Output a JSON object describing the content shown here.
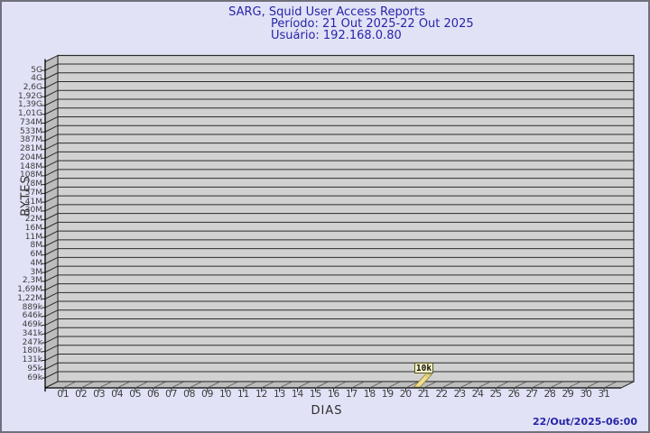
{
  "title": {
    "line1": "SARG, Squid User Access Reports",
    "line2": "Período: 21 Out 2025-22 Out 2025",
    "line3": "Usuário: 192.168.0.80"
  },
  "axes": {
    "y_label": "BYTES",
    "x_label": "DIAS"
  },
  "footer": {
    "timestamp": "22/Out/2025-06:00"
  },
  "colors": {
    "background": "#e2e2f7",
    "frame_border": "#70707c",
    "title_text": "#2525a8",
    "panel_fill": "#d1d1d1",
    "wall_fill": "#bdbdbd",
    "grid_line": "#2b2b2b",
    "axis_line": "#000000",
    "tick_text": "#3c3c3c",
    "bar_fill": "#efdf8e",
    "bar_border": "#8a7c33",
    "bar_pointer": "#dcc96b",
    "label_box_fill": "#fbf7c8",
    "label_box_border": "#54541e"
  },
  "chart_data": {
    "type": "bar",
    "title": "SARG, Squid User Access Reports",
    "subtitle": "Período: 21 Out 2025-22 Out 2025",
    "user": "Usuário: 192.168.0.80",
    "xlabel": "DIAS",
    "ylabel": "BYTES",
    "y_scale": "logarithmic",
    "grid": true,
    "legend_position": "none",
    "categories": [
      "01",
      "02",
      "03",
      "04",
      "05",
      "06",
      "07",
      "08",
      "09",
      "10",
      "11",
      "12",
      "13",
      "14",
      "15",
      "16",
      "17",
      "18",
      "19",
      "20",
      "21",
      "22",
      "23",
      "24",
      "25",
      "26",
      "27",
      "28",
      "29",
      "30",
      "31"
    ],
    "y_tick_labels": [
      "5G",
      "4G",
      "2,6G",
      "1,92G",
      "1,39G",
      "1,01G",
      "734M",
      "533M",
      "387M",
      "281M",
      "204M",
      "148M",
      "108M",
      "78M",
      "57M",
      "41M",
      "30M",
      "22M",
      "16M",
      "11M",
      "8M",
      "6M",
      "4M",
      "3M",
      "2,3M",
      "1,69M",
      "1,22M",
      "889k",
      "646k",
      "469k",
      "341k",
      "247k",
      "180k",
      "131k",
      "95k",
      "69k"
    ],
    "series": [
      {
        "name": "192.168.0.80",
        "points": [
          {
            "day": "21",
            "bytes": 10000,
            "bytes_label": "10k"
          }
        ]
      }
    ],
    "annotation": {
      "day": "21",
      "text": "10k"
    }
  }
}
